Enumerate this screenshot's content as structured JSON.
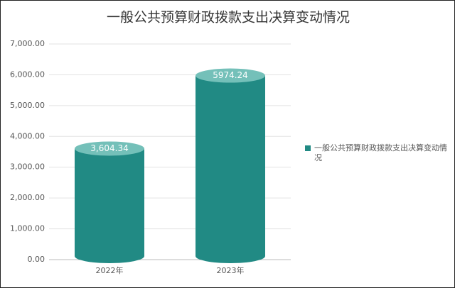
{
  "chart_data": {
    "type": "bar",
    "title": "一般公共预算财政拨款支出决算变动情况",
    "categories": [
      "2022年",
      "2023年"
    ],
    "series": [
      {
        "name": "一般公共预算财政拨款支出决算变动情况",
        "color": "#218a84",
        "values": [
          3604.34,
          5974.24
        ],
        "value_labels": [
          "3,604.34",
          "5974.24"
        ]
      }
    ],
    "ylim": [
      0,
      7000
    ],
    "yticks": [
      {
        "value": 0,
        "label": "0.00"
      },
      {
        "value": 1000,
        "label": "1,000.00"
      },
      {
        "value": 2000,
        "label": "2,000.00"
      },
      {
        "value": 3000,
        "label": "3,000.00"
      },
      {
        "value": 4000,
        "label": "4,000.00"
      },
      {
        "value": 5000,
        "label": "5,000.00"
      },
      {
        "value": 6000,
        "label": "6,000.00"
      },
      {
        "value": 7000,
        "label": "7,000.00"
      }
    ],
    "grid": true,
    "legend": "right"
  }
}
